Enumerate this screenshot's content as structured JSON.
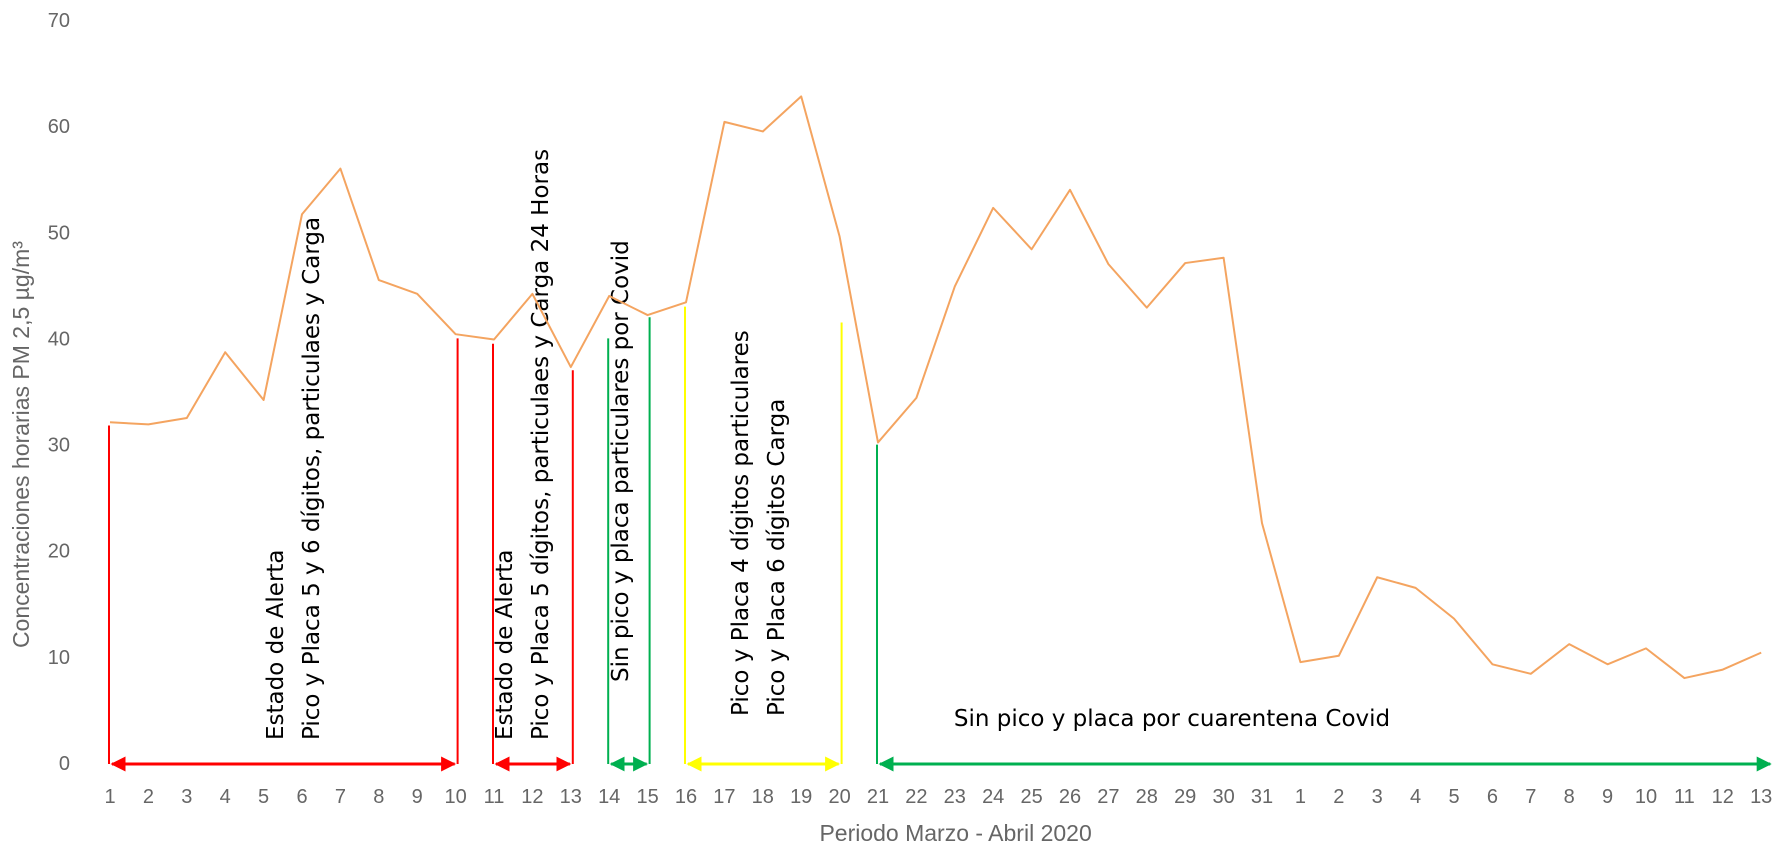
{
  "chart_data": {
    "type": "line",
    "title": "",
    "xlabel": "Periodo Marzo - Abril 2020",
    "ylabel": "Concentraciones horarias PM 2,5 µg/m³",
    "ylim": [
      0,
      70
    ],
    "yticks": [
      0,
      10,
      20,
      30,
      40,
      50,
      60,
      70
    ],
    "grid": false,
    "legend": "none",
    "line_color": "#f4a460",
    "categories": [
      "1",
      "2",
      "3",
      "4",
      "5",
      "6",
      "7",
      "8",
      "9",
      "10",
      "11",
      "12",
      "13",
      "14",
      "15",
      "16",
      "17",
      "18",
      "19",
      "20",
      "21",
      "22",
      "23",
      "24",
      "25",
      "26",
      "27",
      "28",
      "29",
      "30",
      "31",
      "1",
      "2",
      "3",
      "4",
      "5",
      "6",
      "7",
      "8",
      "9",
      "10",
      "11",
      "12",
      "13"
    ],
    "series": [
      {
        "values": [
          32.1,
          31.9,
          32.5,
          38.7,
          34.2,
          51.7,
          56.0,
          45.5,
          44.2,
          40.4,
          39.9,
          44.2,
          37.3,
          44.0,
          42.2,
          43.4,
          60.4,
          59.5,
          62.8,
          49.6,
          30.2,
          34.4,
          44.9,
          52.3,
          48.4,
          54.0,
          47.0,
          42.9,
          47.1,
          47.6,
          22.6,
          9.5,
          10.1,
          17.5,
          16.5,
          13.6,
          9.3,
          8.4,
          11.2,
          9.3,
          10.8,
          8.0,
          8.8,
          10.4
        ]
      }
    ],
    "annotations": [
      {
        "lines": [
          "Estado de Alerta",
          "Pico y Placa  5 y 6 dígitos, particulaes y Carga"
        ],
        "from": 1,
        "to": 10,
        "level_start": 31.8,
        "level_end": 40.0,
        "color": "#ff0000"
      },
      {
        "lines": [
          "Estado de Alerta",
          "Pico y Placa  5 dígitos, particulaes y Carga 24 Horas"
        ],
        "from": 11,
        "to": 13,
        "level_start": 39.5,
        "level_end": 37.0,
        "color": "#ff0000"
      },
      {
        "lines": [
          "Sin pico y placa particulares por Covid"
        ],
        "from": 14,
        "to": 15,
        "level_start": 40.0,
        "level_end": 42.0,
        "color": "#00b050"
      },
      {
        "lines": [
          "Pico y Placa  4 dígitos particulares",
          "Pico y Placa  6 dígitos Carga"
        ],
        "from": 16,
        "to": 20,
        "level_start": 43.0,
        "level_end": 41.5,
        "color": "#ffff00"
      },
      {
        "lines": [
          "Sin pico y placa por cuarentena Covid"
        ],
        "from": 21,
        "to": 44,
        "level_start": 30.0,
        "level_end": null,
        "color": "#00b050"
      }
    ]
  }
}
